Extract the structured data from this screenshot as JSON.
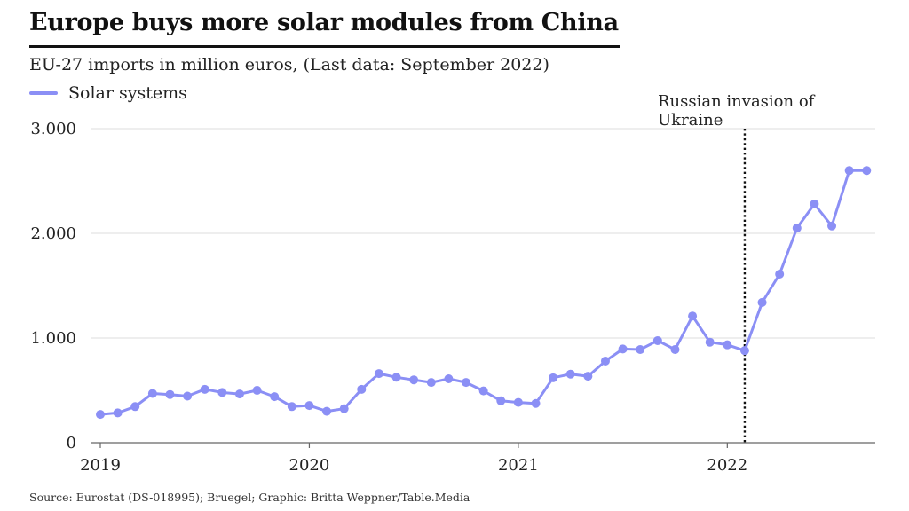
{
  "title": "Europe buys more solar modules from China",
  "subtitle": "EU-27 imports in million euros, (Last data: September 2022)",
  "source": "Source: Eurostat (DS-018995); Bruegel; Graphic: Britta Weppner/Table.Media",
  "colors": {
    "series": "#8b8ff5",
    "grid": "#dddddd",
    "axis": "#666666",
    "annotation": "#111111"
  },
  "chart_data": {
    "type": "line",
    "ylim": [
      0,
      3000
    ],
    "y_ticks": [
      {
        "value": 0,
        "label": "0"
      },
      {
        "value": 1000,
        "label": "1.000"
      },
      {
        "value": 2000,
        "label": "2.000"
      },
      {
        "value": 3000,
        "label": "3.000"
      }
    ],
    "x_ticks": [
      {
        "value": "2019-01",
        "label": "2019"
      },
      {
        "value": "2020-01",
        "label": "2020"
      },
      {
        "value": "2021-01",
        "label": "2021"
      },
      {
        "value": "2022-01",
        "label": "2022"
      }
    ],
    "grid": true,
    "legend_position": "top-left",
    "x": [
      "2019-01",
      "2019-02",
      "2019-03",
      "2019-04",
      "2019-05",
      "2019-06",
      "2019-07",
      "2019-08",
      "2019-09",
      "2019-10",
      "2019-11",
      "2019-12",
      "2020-01",
      "2020-02",
      "2020-03",
      "2020-04",
      "2020-05",
      "2020-06",
      "2020-07",
      "2020-08",
      "2020-09",
      "2020-10",
      "2020-11",
      "2020-12",
      "2021-01",
      "2021-02",
      "2021-03",
      "2021-04",
      "2021-05",
      "2021-06",
      "2021-07",
      "2021-08",
      "2021-09",
      "2021-10",
      "2021-11",
      "2021-12",
      "2022-01",
      "2022-02",
      "2022-03",
      "2022-04",
      "2022-05",
      "2022-06",
      "2022-07",
      "2022-08",
      "2022-09"
    ],
    "series": [
      {
        "name": "Solar systems",
        "values": [
          270,
          285,
          345,
          470,
          460,
          445,
          510,
          480,
          465,
          500,
          440,
          345,
          355,
          300,
          325,
          510,
          660,
          625,
          600,
          575,
          610,
          575,
          495,
          400,
          385,
          375,
          620,
          655,
          635,
          780,
          895,
          890,
          975,
          890,
          1210,
          960,
          935,
          880,
          1340,
          1610,
          2050,
          2280,
          2070,
          2600,
          2600
        ]
      }
    ],
    "annotations": [
      {
        "x": "2022-02",
        "text_lines": [
          "Russian invasion of",
          "Ukraine"
        ]
      }
    ]
  }
}
